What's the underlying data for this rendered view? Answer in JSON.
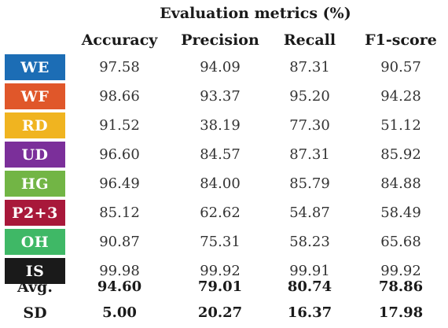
{
  "table": {
    "title": "Evaluation metrics (%)",
    "columns": [
      "Accuracy",
      "Precision",
      "Recall",
      "F1-score"
    ],
    "rows": [
      {
        "label": "WE",
        "color": "#1c6db5",
        "values": [
          "97.58",
          "94.09",
          "87.31",
          "90.57"
        ]
      },
      {
        "label": "WF",
        "color": "#e0572a",
        "values": [
          "98.66",
          "93.37",
          "95.20",
          "94.28"
        ]
      },
      {
        "label": "RD",
        "color": "#f0b420",
        "values": [
          "91.52",
          "38.19",
          "77.30",
          "51.12"
        ]
      },
      {
        "label": "UD",
        "color": "#7b2f9a",
        "values": [
          "96.60",
          "84.57",
          "87.31",
          "85.92"
        ]
      },
      {
        "label": "HG",
        "color": "#72b545",
        "values": [
          "96.49",
          "84.00",
          "85.79",
          "84.88"
        ]
      },
      {
        "label": "P2+3",
        "color": "#a8183a",
        "values": [
          "85.12",
          "62.62",
          "54.87",
          "58.49"
        ]
      },
      {
        "label": "OH",
        "color": "#3fb866",
        "values": [
          "90.87",
          "75.31",
          "58.23",
          "65.68"
        ]
      },
      {
        "label": "IS",
        "color": "#1a1a1a",
        "values": [
          "99.98",
          "99.92",
          "99.91",
          "99.92"
        ]
      }
    ],
    "summary": [
      {
        "label": "Avg.",
        "values": [
          "94.60",
          "79.01",
          "80.74",
          "78.86"
        ]
      },
      {
        "label": "SD",
        "values": [
          "5.00",
          "20.27",
          "16.37",
          "17.98"
        ]
      }
    ]
  }
}
